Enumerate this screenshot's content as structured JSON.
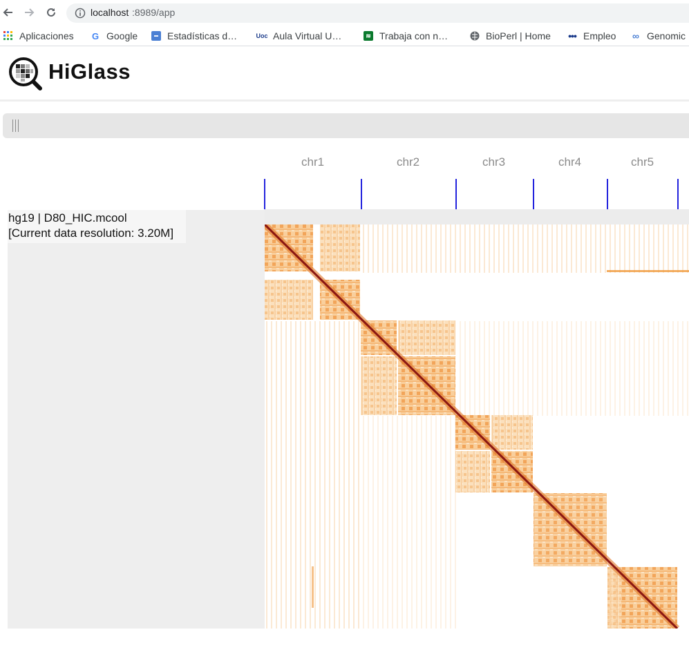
{
  "browser": {
    "url_host": "localhost",
    "url_path": ":8989/app",
    "bookmarks": [
      {
        "label": "Aplicaciones",
        "icon": "apps-grid-icon"
      },
      {
        "label": "Google",
        "icon": "google-icon"
      },
      {
        "label": "Estadísticas d…",
        "icon": "stats-icon"
      },
      {
        "label": "Aula Virtual U…",
        "icon": "uoc-icon"
      },
      {
        "label": "Trabaja con n…",
        "icon": "wifi-icon"
      },
      {
        "label": "BioPerl | Home",
        "icon": "globe-icon"
      },
      {
        "label": "Empleo",
        "icon": "dots-icon"
      },
      {
        "label": "Genomic",
        "icon": "link-icon"
      }
    ]
  },
  "app": {
    "title": "HiGlass"
  },
  "view": {
    "chromosomes": [
      "chr1",
      "chr2",
      "chr3",
      "chr4",
      "chr5"
    ],
    "track_label": {
      "line1": "hg19 | D80_HIC.mcool",
      "line2": "[Current data resolution: 3.20M]"
    }
  },
  "colors": {
    "tick": "#2222dd",
    "heat_low": "#fbe3c4",
    "heat_mid": "#f0983a",
    "heat_high": "#7a1010"
  }
}
